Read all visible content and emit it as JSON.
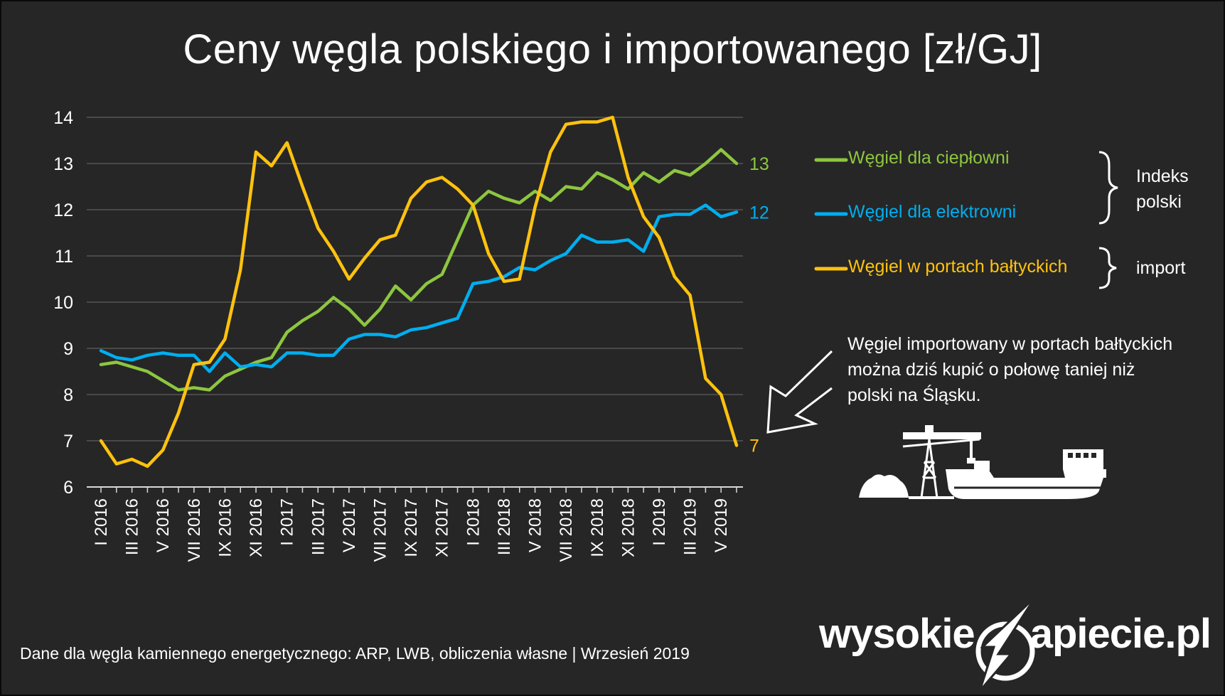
{
  "title": "Ceny węgla polskiego i importowanego [zł/GJ]",
  "chart_data": {
    "type": "line",
    "title": "Ceny węgla polskiego i importowanego [zł/GJ]",
    "ylim": [
      6,
      14
    ],
    "yticks": [
      6,
      7,
      8,
      9,
      10,
      11,
      12,
      13,
      14
    ],
    "grid": true,
    "xtick_labels": [
      "I 2016",
      "III 2016",
      "V 2016",
      "VII 2016",
      "IX 2016",
      "XI 2016",
      "I 2017",
      "III 2017",
      "V 2017",
      "VII 2017",
      "IX 2017",
      "XI 2017",
      "I 2018",
      "III 2018",
      "V 2018",
      "VII 2018",
      "IX 2018",
      "XI 2018",
      "I 2019",
      "III 2019",
      "V 2019"
    ],
    "x": [
      "I 2016",
      "II 2016",
      "III 2016",
      "IV 2016",
      "V 2016",
      "VI 2016",
      "VII 2016",
      "VIII 2016",
      "IX 2016",
      "X 2016",
      "XI 2016",
      "XII 2016",
      "I 2017",
      "II 2017",
      "III 2017",
      "IV 2017",
      "V 2017",
      "VI 2017",
      "VII 2017",
      "VIII 2017",
      "IX 2017",
      "X 2017",
      "XI 2017",
      "XII 2017",
      "I 2018",
      "II 2018",
      "III 2018",
      "IV 2018",
      "V 2018",
      "VI 2018",
      "VII 2018",
      "VIII 2018",
      "IX 2018",
      "X 2018",
      "XI 2018",
      "XII 2018",
      "I 2019",
      "II 2019",
      "III 2019",
      "IV 2019",
      "V 2019",
      "VI 2019"
    ],
    "series": [
      {
        "name": "Węgiel dla ciepłowni",
        "color": "#8DC63F",
        "end_label": "13",
        "values": [
          8.65,
          8.7,
          8.6,
          8.5,
          8.3,
          8.1,
          8.15,
          8.1,
          8.4,
          8.55,
          8.7,
          8.8,
          9.35,
          9.6,
          9.8,
          10.1,
          9.85,
          9.5,
          9.85,
          10.35,
          10.05,
          10.4,
          10.6,
          11.35,
          12.1,
          12.4,
          12.25,
          12.15,
          12.4,
          12.2,
          12.5,
          12.45,
          12.8,
          12.65,
          12.45,
          12.8,
          12.6,
          12.85,
          12.75,
          13.0,
          13.3,
          13.0
        ]
      },
      {
        "name": "Węgiel dla elektrowni",
        "color": "#00AEEF",
        "end_label": "12",
        "values": [
          8.95,
          8.8,
          8.75,
          8.85,
          8.9,
          8.85,
          8.85,
          8.5,
          8.9,
          8.6,
          8.65,
          8.6,
          8.9,
          8.9,
          8.85,
          8.85,
          9.2,
          9.3,
          9.3,
          9.25,
          9.4,
          9.45,
          9.55,
          9.65,
          10.4,
          10.45,
          10.55,
          10.75,
          10.7,
          10.9,
          11.05,
          11.45,
          11.3,
          11.3,
          11.35,
          11.1,
          11.85,
          11.9,
          11.9,
          12.1,
          11.85,
          11.95
        ]
      },
      {
        "name": "Węgiel w portach bałtyckich",
        "color": "#FFC20E",
        "end_label": "7",
        "values": [
          7.0,
          6.5,
          6.6,
          6.45,
          6.8,
          7.6,
          8.65,
          8.7,
          9.2,
          10.7,
          13.25,
          12.95,
          13.45,
          12.5,
          11.6,
          11.1,
          10.5,
          10.95,
          11.35,
          11.45,
          12.25,
          12.6,
          12.7,
          12.45,
          12.1,
          11.05,
          10.45,
          10.5,
          12.05,
          13.25,
          13.85,
          13.9,
          13.9,
          14.0,
          12.7,
          11.85,
          11.4,
          10.55,
          10.15,
          8.35,
          8.0,
          6.9
        ]
      }
    ]
  },
  "legend": [
    {
      "label": "Węgiel dla ciepłowni",
      "color": "#8DC63F"
    },
    {
      "label": "Węgiel dla elektrowni",
      "color": "#00AEEF"
    },
    {
      "label": "Węgiel w portach bałtyckich",
      "color": "#FFC20E"
    }
  ],
  "groups": {
    "polish_line1": "Indeks",
    "polish_line2": "polski",
    "import": "import"
  },
  "note": "Węgiel importowany w portach bałtyckich można dziś kupić o połowę taniej niż polski na Śląsku.",
  "footer": "Dane dla węgla kamiennego energetycznego: ARP, LWB,  obliczenia własne  |  Wrzesień 2019",
  "logo": {
    "left": "wysokie",
    "right": "apiecie.pl"
  }
}
